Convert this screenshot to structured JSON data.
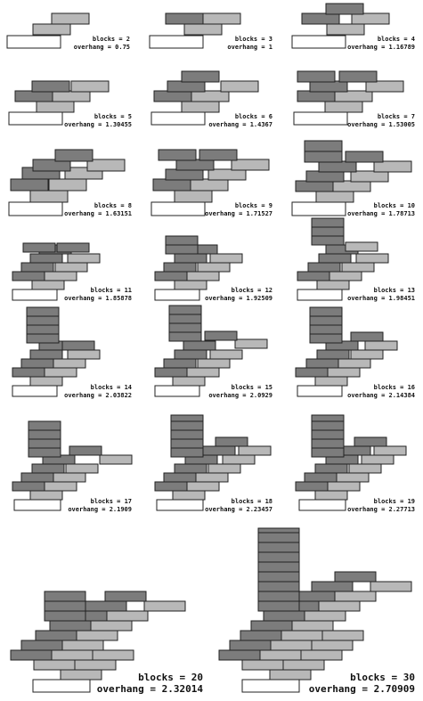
{
  "colors": {
    "base_block": "#ffffff",
    "light_block": "#b8b8b8",
    "dark_block": "#7c7c7c",
    "outline": "#222222",
    "text": "#111111"
  },
  "panels": [
    {
      "id": "p2",
      "blocks_label": "blocks = 2",
      "overhang_label": "overhang = 0.75"
    },
    {
      "id": "p3",
      "blocks_label": "blocks = 3",
      "overhang_label": "overhang = 1"
    },
    {
      "id": "p4",
      "blocks_label": "blocks = 4",
      "overhang_label": "overhang = 1.16789"
    },
    {
      "id": "p5",
      "blocks_label": "blocks = 5",
      "overhang_label": "overhang = 1.30455"
    },
    {
      "id": "p6",
      "blocks_label": "blocks = 6",
      "overhang_label": "overhang = 1.4367"
    },
    {
      "id": "p7",
      "blocks_label": "blocks = 7",
      "overhang_label": "overhang = 1.53005"
    },
    {
      "id": "p8",
      "blocks_label": "blocks = 8",
      "overhang_label": "overhang = 1.63151"
    },
    {
      "id": "p9",
      "blocks_label": "blocks = 9",
      "overhang_label": "overhang = 1.71527"
    },
    {
      "id": "p10",
      "blocks_label": "blocks = 10",
      "overhang_label": "overhang = 1.78713"
    },
    {
      "id": "p11",
      "blocks_label": "blocks = 11",
      "overhang_label": "overhang = 1.85878"
    },
    {
      "id": "p12",
      "blocks_label": "blocks = 12",
      "overhang_label": "overhang = 1.92509"
    },
    {
      "id": "p13",
      "blocks_label": "blocks = 13",
      "overhang_label": "overhang = 1.98451"
    },
    {
      "id": "p14",
      "blocks_label": "blocks = 14",
      "overhang_label": "overhang = 2.03822"
    },
    {
      "id": "p15",
      "blocks_label": "blocks = 15",
      "overhang_label": "overhang = 2.0929"
    },
    {
      "id": "p16",
      "blocks_label": "blocks = 16",
      "overhang_label": "overhang = 2.14384"
    },
    {
      "id": "p17",
      "blocks_label": "blocks = 17",
      "overhang_label": "overhang = 2.1909"
    },
    {
      "id": "p18",
      "blocks_label": "blocks = 18",
      "overhang_label": "overhang = 2.23457"
    },
    {
      "id": "p19",
      "blocks_label": "blocks = 19",
      "overhang_label": "overhang = 2.27713"
    },
    {
      "id": "p20",
      "blocks_label": "blocks = 20",
      "overhang_label": "overhang = 2.32014"
    },
    {
      "id": "p30",
      "blocks_label": "blocks = 30",
      "overhang_label": "overhang = 2.70909"
    }
  ]
}
